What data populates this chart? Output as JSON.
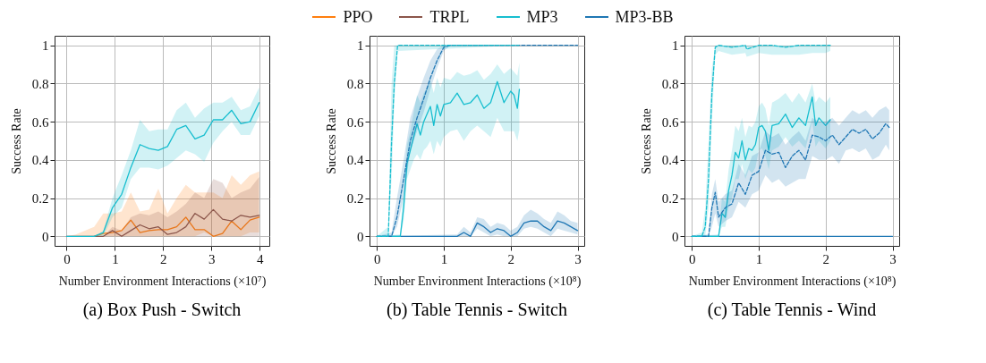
{
  "chart_data": [
    {
      "type": "line",
      "title": "(a) Box Push - Switch",
      "xlabel": "Number Environment Interactions (×10⁷)",
      "ylabel": "Success Rate",
      "xlim": [
        -0.25,
        4.2
      ],
      "xticks": [
        0,
        1,
        2,
        3,
        4
      ],
      "ylim": [
        -0.05,
        1.05
      ],
      "yticks": [
        0,
        0.2,
        0.4,
        0.6,
        0.8,
        1
      ],
      "grid": true,
      "legend": "top",
      "x": [
        0,
        0.19,
        0.38,
        0.57,
        0.76,
        0.95,
        1.14,
        1.33,
        1.52,
        1.71,
        1.9,
        2.09,
        2.28,
        2.47,
        2.66,
        2.85,
        3.04,
        3.23,
        3.42,
        3.61,
        3.8,
        3.99
      ],
      "series": [
        {
          "name": "PPO",
          "color": "#ff7f0e",
          "values": [
            null,
            null,
            null,
            0,
            0.015,
            0.02,
            0.03,
            0.085,
            0.02,
            0.03,
            0.035,
            0.035,
            0.05,
            0.1,
            0.035,
            0.035,
            0,
            0.015,
            0.08,
            0.035,
            0.085,
            0.1
          ],
          "lower": [
            0,
            0,
            0,
            0,
            0,
            0,
            0,
            0,
            0,
            0,
            0,
            0,
            0,
            0,
            0,
            0.02,
            0,
            0,
            0,
            0,
            0.02,
            0.02
          ],
          "upper": [
            0,
            0.01,
            0.03,
            0.05,
            0.12,
            0.12,
            0.13,
            0.23,
            0.13,
            0.14,
            0.25,
            0.12,
            0.2,
            0.27,
            0.23,
            0.23,
            0.23,
            0.2,
            0.32,
            0.27,
            0.32,
            0.34
          ]
        },
        {
          "name": "TRPL",
          "color": "#8c564b",
          "values": [
            0,
            0,
            0,
            0,
            0,
            0.03,
            0,
            0.03,
            0.06,
            0.04,
            0.05,
            0.01,
            0.02,
            0.05,
            0.12,
            0.09,
            0.14,
            0.09,
            0.08,
            0.11,
            0.1,
            0.11
          ],
          "lower": [
            0,
            0,
            0,
            0,
            0,
            0,
            0,
            0,
            0,
            0,
            0,
            0,
            0,
            0,
            0,
            0,
            0,
            0,
            0,
            0,
            0,
            0
          ],
          "upper": [
            0,
            0,
            0,
            0,
            0,
            0.05,
            0.03,
            0.1,
            0.12,
            0.11,
            0.13,
            0.1,
            0.13,
            0.17,
            0.23,
            0.2,
            0.3,
            0.28,
            0.2,
            0.23,
            0.25,
            0.31
          ]
        },
        {
          "name": "MP3",
          "color": "#17becf",
          "values": [
            0,
            0,
            0,
            0,
            0.02,
            0.15,
            0.22,
            0.36,
            0.48,
            0.46,
            0.45,
            0.47,
            0.56,
            0.58,
            0.51,
            0.53,
            0.61,
            0.61,
            0.66,
            0.59,
            0.6,
            0.7
          ],
          "lower": [
            0,
            0,
            0,
            0,
            0,
            0.1,
            0.15,
            0.3,
            0.36,
            0.36,
            0.35,
            0.37,
            0.41,
            0.45,
            0.43,
            0.39,
            0.49,
            0.55,
            0.6,
            0.53,
            0.53,
            0.63
          ],
          "upper": [
            0,
            0,
            0,
            0,
            0.03,
            0.2,
            0.32,
            0.45,
            0.61,
            0.55,
            0.56,
            0.56,
            0.66,
            0.7,
            0.62,
            0.67,
            0.7,
            0.7,
            0.73,
            0.66,
            0.68,
            0.78
          ]
        }
      ]
    },
    {
      "type": "line",
      "title": "(b) Table Tennis - Switch",
      "xlabel": "Number Environment Interactions (×10⁸)",
      "ylabel": "Success Rate",
      "xlim": [
        -0.11,
        3.1
      ],
      "xticks": [
        0,
        1,
        2,
        3
      ],
      "ylim": [
        -0.05,
        1.05
      ],
      "yticks": [
        0,
        0.2,
        0.4,
        0.6,
        0.8,
        1
      ],
      "grid": true,
      "series": [
        {
          "name": "MP3-BB",
          "color": "#1f77b4",
          "x": [
            0,
            1.2,
            1.3,
            1.4,
            1.5,
            1.6,
            1.7,
            1.8,
            1.9,
            2.0,
            2.1,
            2.2,
            2.3,
            2.4,
            2.5,
            2.6,
            2.7,
            2.8,
            2.9,
            3.0
          ],
          "values": [
            0,
            0,
            0.02,
            0,
            0.07,
            0.05,
            0.02,
            0.04,
            0.03,
            0,
            0.02,
            0.07,
            0.08,
            0.08,
            0.05,
            0.03,
            0.08,
            0.07,
            0.05,
            0.03
          ],
          "lower": [
            0,
            0,
            0,
            0,
            0.04,
            0.02,
            0,
            0.01,
            0,
            0,
            0,
            0.04,
            0.05,
            0.04,
            0.02,
            0,
            0.04,
            0.03,
            0.02,
            0.01
          ],
          "upper": [
            0,
            0.01,
            0.05,
            0.02,
            0.1,
            0.09,
            0.05,
            0.07,
            0.06,
            0.03,
            0.05,
            0.11,
            0.14,
            0.12,
            0.09,
            0.07,
            0.13,
            0.11,
            0.08,
            0.07
          ]
        },
        {
          "name": "MP3",
          "color": "#17becf",
          "x": [
            0,
            0.35,
            0.4,
            0.45,
            0.5,
            0.55,
            0.6,
            0.65,
            0.7,
            0.75,
            0.8,
            0.85,
            0.9,
            0.95,
            1.0,
            1.1,
            1.2,
            1.3,
            1.4,
            1.5,
            1.6,
            1.7,
            1.8,
            1.9,
            2.0,
            2.05,
            2.1,
            2.13
          ],
          "values": [
            0,
            0,
            0.15,
            0.38,
            0.45,
            0.52,
            0.59,
            0.53,
            0.6,
            0.64,
            0.68,
            0.58,
            0.69,
            0.63,
            0.69,
            0.7,
            0.75,
            0.69,
            0.7,
            0.74,
            0.67,
            0.7,
            0.81,
            0.7,
            0.76,
            0.74,
            0.67,
            0.77
          ],
          "lower": [
            0,
            0,
            0.08,
            0.3,
            0.35,
            0.4,
            0.43,
            0.4,
            0.45,
            0.47,
            0.5,
            0.43,
            0.5,
            0.47,
            0.52,
            0.55,
            0.56,
            0.5,
            0.55,
            0.58,
            0.55,
            0.52,
            0.62,
            0.55,
            0.55,
            0.55,
            0.5,
            0.56
          ],
          "upper": [
            0,
            0.01,
            0.25,
            0.48,
            0.55,
            0.65,
            0.74,
            0.7,
            0.75,
            0.78,
            0.82,
            0.75,
            0.83,
            0.78,
            0.83,
            0.82,
            0.86,
            0.84,
            0.85,
            0.87,
            0.82,
            0.85,
            0.9,
            0.85,
            0.88,
            0.86,
            0.84,
            0.91
          ]
        },
        {
          "color": "#1f77b4",
          "line_style": "dashed",
          "x": [
            0,
            0.22,
            0.3,
            0.4,
            0.5,
            0.6,
            0.7,
            0.8,
            0.9,
            1.0,
            1.1,
            3.0
          ],
          "values": [
            0,
            0,
            0.1,
            0.3,
            0.5,
            0.62,
            0.72,
            0.83,
            0.92,
            0.99,
            1,
            1
          ],
          "lower": [
            0,
            0,
            0.05,
            0.2,
            0.45,
            0.55,
            0.65,
            0.77,
            0.88,
            0.97,
            1,
            1
          ],
          "upper": [
            0,
            0.02,
            0.2,
            0.4,
            0.62,
            0.73,
            0.83,
            0.92,
            0.98,
            1,
            1,
            1
          ]
        },
        {
          "color": "#17becf",
          "line_style": "dashed",
          "x": [
            0,
            0.17,
            0.22,
            0.26,
            0.31,
            2.12
          ],
          "values": [
            0,
            0,
            0.5,
            0.8,
            1,
            1
          ],
          "lower": [
            0,
            0,
            0.3,
            0.7,
            0.97,
            1
          ],
          "upper": [
            0,
            0.05,
            0.8,
            1,
            1,
            1
          ]
        }
      ]
    },
    {
      "type": "line",
      "title": "(c) Table Tennis - Wind",
      "xlabel": "Number Environment Interactions (×10⁸)",
      "ylabel": "Success Rate",
      "xlim": [
        -0.11,
        3.1
      ],
      "xticks": [
        0,
        1,
        2,
        3
      ],
      "ylim": [
        -0.05,
        1.05
      ],
      "yticks": [
        0,
        0.2,
        0.4,
        0.6,
        0.8,
        1
      ],
      "grid": true,
      "series": [
        {
          "name": "MP3-BB",
          "color": "#1f77b4",
          "x": [
            0,
            3
          ],
          "values": [
            0,
            0
          ]
        },
        {
          "name": "MP3",
          "color": "#17becf",
          "x": [
            0,
            0.4,
            0.45,
            0.5,
            0.55,
            0.6,
            0.65,
            0.7,
            0.75,
            0.8,
            0.85,
            0.9,
            0.95,
            1.0,
            1.05,
            1.1,
            1.15,
            1.2,
            1.3,
            1.4,
            1.5,
            1.6,
            1.7,
            1.8,
            1.85,
            1.9,
            2.0,
            2.07
          ],
          "values": [
            0,
            0,
            0.12,
            0.1,
            0.24,
            0.32,
            0.44,
            0.41,
            0.5,
            0.4,
            0.46,
            0.45,
            0.48,
            0.57,
            0.58,
            0.55,
            0.45,
            0.58,
            0.59,
            0.64,
            0.57,
            0.62,
            0.58,
            0.73,
            0.58,
            0.62,
            0.58,
            0.61
          ],
          "lower": [
            0,
            0,
            0.05,
            0.05,
            0.15,
            0.2,
            0.3,
            0.3,
            0.38,
            0.3,
            0.35,
            0.33,
            0.36,
            0.45,
            0.46,
            0.42,
            0.35,
            0.45,
            0.47,
            0.52,
            0.47,
            0.5,
            0.46,
            0.6,
            0.47,
            0.5,
            0.46,
            0.5
          ],
          "upper": [
            0,
            0.01,
            0.2,
            0.18,
            0.35,
            0.45,
            0.58,
            0.55,
            0.62,
            0.52,
            0.58,
            0.57,
            0.6,
            0.68,
            0.7,
            0.67,
            0.58,
            0.7,
            0.72,
            0.75,
            0.7,
            0.75,
            0.7,
            0.8,
            0.7,
            0.73,
            0.7,
            0.73
          ]
        },
        {
          "color": "#1f77b4",
          "line_style": "dashed",
          "x": [
            0,
            0.25,
            0.3,
            0.35,
            0.4,
            0.5,
            0.6,
            0.7,
            0.8,
            0.9,
            1.0,
            1.1,
            1.2,
            1.3,
            1.4,
            1.5,
            1.6,
            1.7,
            1.8,
            1.9,
            2.0,
            2.1,
            2.2,
            2.3,
            2.4,
            2.5,
            2.6,
            2.7,
            2.8,
            2.9,
            2.95
          ],
          "values": [
            0,
            0,
            0.15,
            0.23,
            0.1,
            0.15,
            0.17,
            0.28,
            0.22,
            0.32,
            0.34,
            0.45,
            0.43,
            0.44,
            0.36,
            0.42,
            0.45,
            0.4,
            0.53,
            0.52,
            0.5,
            0.53,
            0.48,
            0.52,
            0.56,
            0.54,
            0.56,
            0.51,
            0.54,
            0.59,
            0.57
          ],
          "lower": [
            0,
            0,
            0.05,
            0.12,
            0.05,
            0.08,
            0.1,
            0.18,
            0.15,
            0.22,
            0.24,
            0.32,
            0.28,
            0.3,
            0.26,
            0.28,
            0.3,
            0.3,
            0.42,
            0.4,
            0.4,
            0.42,
            0.38,
            0.45,
            0.46,
            0.44,
            0.46,
            0.4,
            0.42,
            0.48,
            0.45
          ],
          "upper": [
            0,
            0.01,
            0.22,
            0.3,
            0.18,
            0.22,
            0.24,
            0.38,
            0.32,
            0.42,
            0.44,
            0.55,
            0.52,
            0.54,
            0.48,
            0.52,
            0.55,
            0.5,
            0.62,
            0.6,
            0.6,
            0.62,
            0.58,
            0.62,
            0.66,
            0.64,
            0.66,
            0.62,
            0.66,
            0.68,
            0.66
          ]
        },
        {
          "color": "#17becf",
          "line_style": "dashed",
          "x": [
            0,
            0.15,
            0.2,
            0.25,
            0.3,
            0.35,
            0.4,
            0.6,
            0.8,
            0.82,
            1.0,
            1.2,
            1.4,
            1.6,
            1.8,
            2.0,
            2.07
          ],
          "values": [
            0,
            0,
            0.05,
            0.3,
            0.75,
            0.99,
            1,
            0.99,
            1,
            0.98,
            1,
            1,
            0.99,
            1,
            1,
            1,
            1
          ],
          "lower": [
            0,
            0,
            0,
            0.15,
            0.6,
            0.95,
            0.97,
            0.95,
            0.96,
            0.94,
            0.96,
            0.95,
            0.95,
            0.95,
            0.96,
            0.96,
            0.97
          ],
          "upper": [
            0,
            0.02,
            0.15,
            0.5,
            0.88,
            1,
            1,
            1,
            1,
            1,
            1,
            1,
            1,
            1,
            1,
            1,
            1
          ]
        }
      ]
    }
  ]
}
